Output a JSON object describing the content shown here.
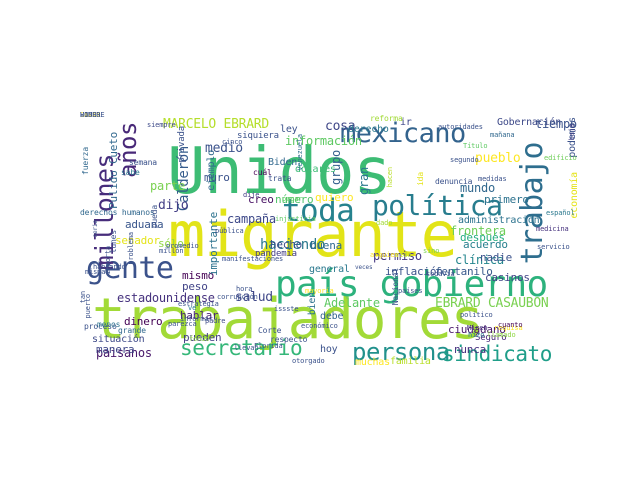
{
  "words": [
    {
      "text": "Unidos",
      "color": "#3dbc74"
    },
    {
      "text": "migrante",
      "color": "#e2e418"
    },
    {
      "text": "trabajadores",
      "color": "#a2da37"
    },
    {
      "text": "país gobierno",
      "color": "#2db27d"
    },
    {
      "text": "mexicano",
      "color": "#33638d"
    },
    {
      "text": "gente",
      "color": "#3b528b"
    },
    {
      "text": "política",
      "color": "#287d8e"
    },
    {
      "text": "toda",
      "color": "#26828e"
    },
    {
      "text": "trabajo",
      "color": "#2e6e8e"
    },
    {
      "text": "persona",
      "color": "#21918c"
    },
    {
      "text": "sindicato",
      "color": "#1f9e89"
    },
    {
      "text": "secretario",
      "color": "#35b779"
    },
    {
      "text": "millones",
      "color": "#472d7b"
    },
    {
      "text": "años",
      "color": "#482878"
    },
    {
      "text": "MARCELO EBRARD",
      "color": "#b5de2b"
    },
    {
      "text": "EBRARD CASAUBON",
      "color": "#7ad151"
    },
    {
      "text": "Gobernación",
      "color": "#3e4a89"
    },
    {
      "text": "tiempo",
      "color": "#3b528b"
    },
    {
      "text": "información",
      "color": "#5ec962"
    },
    {
      "text": "cosa",
      "color": "#3f4788"
    },
    {
      "text": "pueblo",
      "color": "#fde725"
    },
    {
      "text": "mundo",
      "color": "#31688e"
    },
    {
      "text": "primero",
      "color": "#2c728e"
    },
    {
      "text": "frontera",
      "color": "#6ece58"
    },
    {
      "text": "acuerdo",
      "color": "#27808e"
    },
    {
      "text": "clínica",
      "color": "#24868e"
    },
    {
      "text": "casinos",
      "color": "#414487"
    },
    {
      "text": "permiso",
      "color": "#453781"
    },
    {
      "text": "grupo",
      "color": "#34608d"
    },
    {
      "text": "inflación",
      "color": "#3b528b"
    },
    {
      "text": "fentanilo",
      "color": "#38598c"
    },
    {
      "text": "Adelante",
      "color": "#5ec962"
    },
    {
      "text": "paisanos",
      "color": "#48186a"
    },
    {
      "text": "manera",
      "color": "#3f4788"
    },
    {
      "text": "estadounidense",
      "color": "#46327e"
    },
    {
      "text": "Calderón",
      "color": "#365c8d"
    },
    {
      "text": "campaña",
      "color": "#3e4989"
    },
    {
      "text": "dinero",
      "color": "#440154"
    },
    {
      "text": "haciendo",
      "color": "#2a788e"
    },
    {
      "text": "hecho",
      "color": "#3d4d8a"
    },
    {
      "text": "buena",
      "color": "#306a8e"
    },
    {
      "text": "salud",
      "color": "#3f4788"
    },
    {
      "text": "medio",
      "color": "#3b528b"
    },
    {
      "text": "dijo",
      "color": "#433e85"
    },
    {
      "text": "parte",
      "color": "#7ad151"
    },
    {
      "text": "creo",
      "color": "#471063"
    },
    {
      "text": "quiero",
      "color": "#fde725"
    },
    {
      "text": "Biden",
      "color": "#31688e"
    },
    {
      "text": "muro",
      "color": "#3b528b"
    },
    {
      "text": "mismo",
      "color": "#440154"
    },
    {
      "text": "peso",
      "color": "#414487"
    },
    {
      "text": "situación",
      "color": "#3e4a89"
    },
    {
      "text": "pueden",
      "color": "#433e85"
    },
    {
      "text": "nunca",
      "color": "#46307e"
    },
    {
      "text": "familia",
      "color": "#b8de29"
    },
    {
      "text": "muchas",
      "color": "#fde725"
    },
    {
      "text": "hoy",
      "color": "#3b528b"
    },
    {
      "text": "aduana",
      "color": "#39568c"
    },
    {
      "text": "senador",
      "color": "#e5e419"
    },
    {
      "text": "gran",
      "color": "#2a788e"
    },
    {
      "text": "ejemplo",
      "color": "#306a8e"
    },
    {
      "text": "Pulido Cueto",
      "color": "#31688e"
    },
    {
      "text": "importante",
      "color": "#2c728e"
    },
    {
      "text": "hablar",
      "color": "#482475"
    },
    {
      "text": "número",
      "color": "#50c46a"
    },
    {
      "text": "después",
      "color": "#26ad81"
    },
    {
      "text": "nadie",
      "color": "#3b528b"
    },
    {
      "text": "sólo",
      "color": "#90d743"
    },
    {
      "text": "ir",
      "color": "#3e4989"
    },
    {
      "text": "derecho",
      "color": "#2a788e"
    },
    {
      "text": "ley",
      "color": "#3b528b"
    },
    {
      "text": "dólares",
      "color": "#3dbc74"
    },
    {
      "text": "podemos",
      "color": "#3b528b"
    },
    {
      "text": "economía",
      "color": "#e5e419"
    },
    {
      "text": "administración",
      "color": "#2c728e"
    },
    {
      "text": "ciudadano",
      "color": "#48186a"
    },
    {
      "text": "Miren",
      "color": "#46327e"
    },
    {
      "text": "Seguro",
      "color": "#482878"
    },
    {
      "text": "debe",
      "color": "#33638d"
    },
    {
      "text": "bien",
      "color": "#2c728e"
    },
    {
      "text": "general",
      "color": "#2a788e"
    },
    {
      "text": "fuerza",
      "color": "#31688e"
    },
    {
      "text": "derechos humanos",
      "color": "#31688e"
    },
    {
      "text": "proceso",
      "color": "#3b528b"
    },
    {
      "text": "menos",
      "color": "#2c728e"
    },
    {
      "text": "grande",
      "color": "#31688e"
    },
    {
      "text": "padre",
      "color": "#3e4a89"
    },
    {
      "text": "respecto",
      "color": "#3b528b"
    },
    {
      "text": "Corte",
      "color": "#3b528b"
    },
    {
      "text": "pandemia",
      "color": "#433e85"
    },
    {
      "text": "reforma",
      "color": "#a2da37"
    },
    {
      "text": "Venezuela",
      "color": "#2e6e8e"
    },
    {
      "text": "denuncia",
      "color": "#3b528b"
    },
    {
      "text": "edificio",
      "color": "#6ece58"
    },
    {
      "text": "español",
      "color": "#2a788e"
    },
    {
      "text": "medicina",
      "color": "#46327e"
    },
    {
      "text": "servicio",
      "color": "#3b528b"
    },
    {
      "text": "siquiera",
      "color": "#3b528b"
    },
    {
      "text": "cuál",
      "color": "#440154"
    },
    {
      "text": "trata",
      "color": "#3b528b"
    },
    {
      "text": "dije",
      "color": "#433e85"
    },
    {
      "text": "cinco",
      "color": "#3b528b"
    },
    {
      "text": "sabe",
      "color": "#2a788e"
    },
    {
      "text": "semana",
      "color": "#3b528b"
    },
    {
      "text": "siempre",
      "color": "#3e4a89"
    },
    {
      "text": "privada",
      "color": "#3b528b"
    },
    {
      "text": "baja",
      "color": "#433e85"
    },
    {
      "text": "requisa",
      "color": "#fde725"
    },
    {
      "text": "cuanto",
      "color": "#440154"
    },
    {
      "text": "llamado",
      "color": "#90d743"
    },
    {
      "text": "hizo",
      "color": "#2a788e"
    },
    {
      "text": "político",
      "color": "#3b528b"
    },
    {
      "text": "Título",
      "color": "#5ec962"
    },
    {
      "text": "segundo",
      "color": "#3b528b"
    },
    {
      "text": "mañana",
      "color": "#31688e"
    },
    {
      "text": "medidas",
      "color": "#3b528b"
    },
    {
      "text": "autoridades",
      "color": "#3b528b"
    },
    {
      "text": "ida",
      "color": "#e5e419"
    },
    {
      "text": "hacen",
      "color": "#b8de29"
    },
    {
      "text": "dado",
      "color": "#a2da37"
    },
    {
      "text": "injusticia",
      "color": "#5ec962"
    },
    {
      "text": "Nacional",
      "color": "#3b528b"
    },
    {
      "text": "todavía",
      "color": "#3b528b"
    },
    {
      "text": "vida",
      "color": "#b8de29"
    },
    {
      "text": "sino",
      "color": "#7ad151"
    },
    {
      "text": "países",
      "color": "#3b528b"
    },
    {
      "text": "hablando",
      "color": "#3b528b"
    },
    {
      "text": "misma",
      "color": "#3b528b"
    },
    {
      "text": "estrategia",
      "color": "#3b528b"
    },
    {
      "text": "fondo",
      "color": "#90d743"
    },
    {
      "text": "informar",
      "color": "#3b528b"
    },
    {
      "text": "Florida",
      "color": "#3b528b"
    },
    {
      "text": "llevan",
      "color": "#3b528b"
    },
    {
      "text": "otorgado",
      "color": "#3b528b"
    },
    {
      "text": "parezca",
      "color": "#3b528b"
    },
    {
      "text": "issste",
      "color": "#3b528b"
    },
    {
      "text": "económico",
      "color": "#3b528b"
    },
    {
      "text": "mayoría",
      "color": "#fde725"
    },
    {
      "text": "pagar",
      "color": "#5ec962"
    },
    {
      "text": "pública",
      "color": "#3b528b"
    },
    {
      "text": "corrupción",
      "color": "#3b528b"
    },
    {
      "text": "alguien",
      "color": "#fde725"
    },
    {
      "text": "veces",
      "color": "#3b528b"
    },
    {
      "text": "pueda",
      "color": "#3b528b"
    },
    {
      "text": "importa",
      "color": "#3b528b"
    },
    {
      "text": "serie",
      "color": "#3b528b"
    },
    {
      "text": "problema",
      "color": "#3b528b"
    },
    {
      "text": "promedio",
      "color": "#3b528b"
    },
    {
      "text": "millón",
      "color": "#3b528b"
    },
    {
      "text": "manifestaciones",
      "color": "#3b528b"
    },
    {
      "text": "ve",
      "color": "#2a788e"
    },
    {
      "text": "hora",
      "color": "#3b528b"
    },
    {
      "text": "lunes",
      "color": "#3b528b"
    },
    {
      "text": "tan",
      "color": "#3b528b"
    },
    {
      "text": "puerto",
      "color": "#3b528b"
    },
    {
      "text": "SAVAN",
      "color": "#fde725"
    },
    {
      "text": "VÍDEO",
      "color": "#3b528b"
    },
    {
      "text": "HOMBRE",
      "color": "#3b528b"
    }
  ]
}
